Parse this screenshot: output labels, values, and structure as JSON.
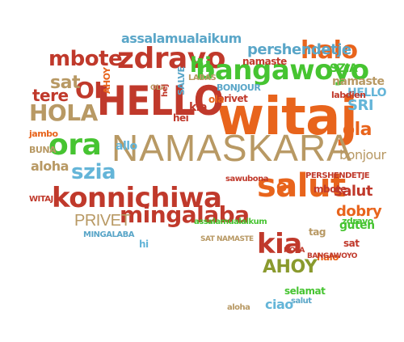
{
  "colors": {
    "orange": "#e8641c",
    "red": "#c0392b",
    "brown": "#c0a36a",
    "tan": "#b89964",
    "green": "#46c431",
    "sky": "#64b5d8",
    "blue": "#5aa6c8",
    "olive": "#8a9a2e",
    "dkorange": "#d9531e",
    "crimson": "#b92a1f"
  },
  "words": {
    "witaj": "witaj",
    "hello": "HELLO",
    "namaskara": "NAMASKARA",
    "konnichiwa": "konnichiwa",
    "salut": "salut",
    "zdravo": "zdravo",
    "bangawoyo": "bangawoyo",
    "mingalaba": "mingalaba",
    "ora": "ora",
    "hola": "HOLA",
    "halo": "halo",
    "kia": "kia",
    "oi": "OI",
    "ahoy": "AHOY",
    "privet": "PRIVET",
    "mbote": "mbote",
    "perhendetje": "pershendetje",
    "szia": "szia",
    "aloha": "aloha",
    "hi": "hi",
    "sat": "sat",
    "tere": "tere",
    "ola": "ola",
    "sri": "SRI",
    "bonjour": "bonjour",
    "namaste": "namaste",
    "assalamualaikum": "assalamualaikum",
    "salut2": "salut",
    "dobry": "dobry",
    "guten": "guten",
    "selamat": "selamat",
    "ciao": "ciao",
    "hello2": "HELLO",
    "allo": "allo",
    "jambo": "jambo",
    "buna": "BUNA",
    "labas": "LABAS",
    "labdien": "labdien",
    "hej": "hej",
    "hei": "hei",
    "sawubona": "sawubona",
    "tag": "tag",
    "salut3": "salut",
    "aloha2": "aloha",
    "privet2": "privet",
    "oi2": "OI",
    "bonjour2": "BONJOUR",
    "zdravo2": "zdravo",
    "salve": "SALVE",
    "namaste2": "namaste",
    "mbote2": "mbote",
    "sat2": "sat",
    "kia2": "kia",
    "hi2": "hi",
    "ola2": "ola",
    "halo2": "halo",
    "perhendetje2": "PERSHENDETJE",
    "bangawoyo2": "BANGAWOYO",
    "szia2": "SZIA",
    "witaj2": "WITAJ",
    "mingalaba2": "MINGALABA",
    "sat3": "SAT NAMASTE",
    "ahoy2": "AHOY",
    "assalamualaikum2": "assalamualaikum",
    "ola3": "OLA",
    "hola2": "HOLA"
  }
}
